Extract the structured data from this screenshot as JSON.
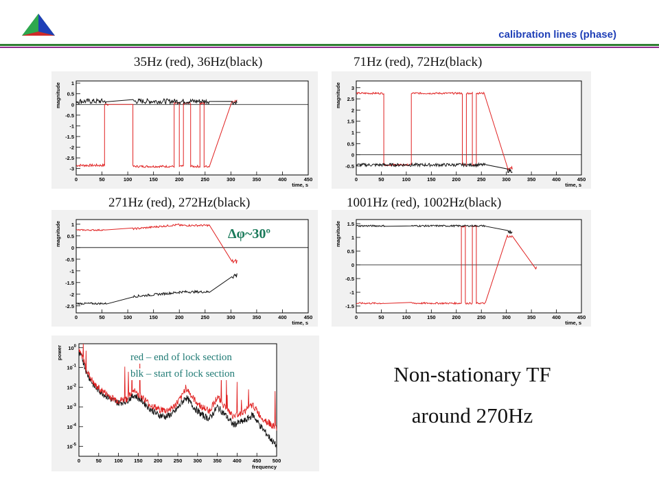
{
  "slide": {
    "title": "calibration lines (phase)",
    "colors": {
      "title": "#1f3fb7",
      "rule_top": "#2e7d32",
      "rule_bottom": "#8e2a8e",
      "annotation": "#1a7a5a"
    },
    "logo_icon": "pyramid-logo-icon",
    "main_text_line1": "Non-stationary TF",
    "main_text_line2": "around 270Hz"
  },
  "chart_data": [
    {
      "type": "line",
      "caption": "35Hz (red), 36Hz(black)",
      "xlabel": "time, s",
      "ylabel": "magnitude",
      "xlim": [
        0,
        450
      ],
      "ylim": [
        -3.3,
        1.1
      ],
      "xticks": [
        "0",
        "50",
        "100",
        "150",
        "200",
        "250",
        "300",
        "350",
        "400",
        "450"
      ],
      "yticks": [
        "1",
        "0.5",
        "0",
        "-0.5",
        "-1",
        "-1.5",
        "-2",
        "-2.5",
        "-3"
      ],
      "series": [
        {
          "color": "#e02020",
          "segments": [
            {
              "x0": 0,
              "x1": 55,
              "level": -2.85,
              "noise": 0.06
            },
            {
              "x0": 55,
              "x1": 62,
              "level": 0.0,
              "noise": 0.05
            },
            {
              "x0": 62,
              "x1": 110,
              "level": 0.0,
              "noise": 0.0
            },
            {
              "x0": 110,
              "x1": 190,
              "level": -2.9,
              "noise": 0.05
            },
            {
              "x0": 190,
              "x1": 200,
              "level": 0.05,
              "noise": 0.05
            },
            {
              "x0": 200,
              "x1": 208,
              "level": -2.9,
              "noise": 0.05
            },
            {
              "x0": 208,
              "x1": 222,
              "level": 0.05,
              "noise": 0.05
            },
            {
              "x0": 222,
              "x1": 240,
              "level": -2.9,
              "noise": 0.05
            },
            {
              "x0": 240,
              "x1": 248,
              "level": 0.05,
              "noise": 0.05
            },
            {
              "x0": 248,
              "x1": 258,
              "level": -2.9,
              "noise": 0.05
            },
            {
              "x0": 302,
              "x1": 312,
              "level": 0.15,
              "noise": 0.08
            }
          ]
        },
        {
          "color": "#111111",
          "segments": [
            {
              "x0": 0,
              "x1": 58,
              "level": 0.15,
              "noise": 0.12
            },
            {
              "x0": 110,
              "x1": 258,
              "level": 0.15,
              "noise": 0.12
            },
            {
              "x0": 302,
              "x1": 312,
              "level": 0.1,
              "noise": 0.1
            }
          ]
        }
      ]
    },
    {
      "type": "line",
      "caption": "71Hz (red), 72Hz(black)",
      "xlabel": "time, s",
      "ylabel": "magnitude",
      "xlim": [
        0,
        450
      ],
      "ylim": [
        -0.9,
        3.3
      ],
      "xticks": [
        "0",
        "50",
        "100",
        "150",
        "200",
        "250",
        "300",
        "350",
        "400",
        "450"
      ],
      "yticks": [
        "3",
        "2.5",
        "2",
        "1.5",
        "1",
        "0.5",
        "0",
        "-0.5"
      ],
      "series": [
        {
          "color": "#e02020",
          "segments": [
            {
              "x0": 0,
              "x1": 55,
              "level": 2.75,
              "noise": 0.04
            },
            {
              "x0": 55,
              "x1": 110,
              "level": -0.45,
              "noise": 0.04
            },
            {
              "x0": 110,
              "x1": 212,
              "level": 2.75,
              "noise": 0.04
            },
            {
              "x0": 212,
              "x1": 220,
              "level": -0.45,
              "noise": 0.04
            },
            {
              "x0": 220,
              "x1": 232,
              "level": 2.75,
              "noise": 0.04
            },
            {
              "x0": 232,
              "x1": 240,
              "level": -0.45,
              "noise": 0.04
            },
            {
              "x0": 240,
              "x1": 256,
              "level": 2.75,
              "noise": 0.04
            },
            {
              "x0": 302,
              "x1": 312,
              "level": -0.6,
              "noise": 0.08
            }
          ]
        },
        {
          "color": "#111111",
          "segments": [
            {
              "x0": 0,
              "x1": 110,
              "level": -0.45,
              "noise": 0.07
            },
            {
              "x0": 110,
              "x1": 258,
              "level": -0.45,
              "noise": 0.07
            },
            {
              "x0": 302,
              "x1": 312,
              "level": -0.7,
              "noise": 0.1
            }
          ]
        }
      ]
    },
    {
      "type": "line",
      "caption": "271Hz (red), 272Hz(black)",
      "xlabel": "time, s",
      "ylabel": "magnitude",
      "xlim": [
        0,
        450
      ],
      "ylim": [
        -2.8,
        1.2
      ],
      "xticks": [
        "0",
        "50",
        "100",
        "150",
        "200",
        "250",
        "300",
        "350",
        "400",
        "450"
      ],
      "yticks": [
        "1",
        "0.5",
        "0",
        "-0.5",
        "-1",
        "-1.5",
        "-2",
        "-2.5"
      ],
      "annotation": "Δφ~30º",
      "series": [
        {
          "color": "#e02020",
          "segments": [
            {
              "x0": 0,
              "x1": 55,
              "level": 0.75,
              "noise": 0.03
            },
            {
              "x0": 110,
              "x1": 200,
              "level": 0.8,
              "slope": 0.002,
              "noise": 0.04
            },
            {
              "x0": 200,
              "x1": 258,
              "level": 0.95,
              "noise": 0.04
            },
            {
              "x0": 302,
              "x1": 312,
              "level": -0.6,
              "noise": 0.1
            }
          ]
        },
        {
          "color": "#111111",
          "segments": [
            {
              "x0": 0,
              "x1": 58,
              "level": -2.4,
              "noise": 0.04
            },
            {
              "x0": 110,
              "x1": 200,
              "level": -2.1,
              "slope": 0.002,
              "noise": 0.05
            },
            {
              "x0": 200,
              "x1": 258,
              "level": -1.9,
              "noise": 0.05
            },
            {
              "x0": 302,
              "x1": 312,
              "level": -1.2,
              "noise": 0.15
            }
          ]
        }
      ]
    },
    {
      "type": "line",
      "caption": "1001Hz (red), 1002Hz(black)",
      "xlabel": "time, s",
      "ylabel": "magnitude",
      "xlim": [
        0,
        450
      ],
      "ylim": [
        -1.75,
        1.65
      ],
      "xticks": [
        "0",
        "50",
        "100",
        "150",
        "200",
        "250",
        "300",
        "350",
        "400",
        "450"
      ],
      "yticks": [
        "1.5",
        "1",
        "0.5",
        "0",
        "-0.5",
        "-1",
        "-1.5"
      ],
      "series": [
        {
          "color": "#e02020",
          "segments": [
            {
              "x0": 0,
              "x1": 55,
              "level": -1.4,
              "noise": 0.03
            },
            {
              "x0": 110,
              "x1": 210,
              "level": -1.4,
              "noise": 0.03
            },
            {
              "x0": 210,
              "x1": 218,
              "level": 1.4,
              "noise": 0.03
            },
            {
              "x0": 218,
              "x1": 232,
              "level": -1.4,
              "noise": 0.03
            },
            {
              "x0": 232,
              "x1": 240,
              "level": 1.4,
              "noise": 0.03
            },
            {
              "x0": 240,
              "x1": 258,
              "level": -1.4,
              "noise": 0.03
            },
            {
              "x0": 302,
              "x1": 312,
              "level": 1.0,
              "noise": 0.1
            },
            {
              "x0": 358,
              "x1": 360,
              "level": -0.1,
              "noise": 0.05
            }
          ]
        },
        {
          "color": "#111111",
          "segments": [
            {
              "x0": 0,
              "x1": 58,
              "level": 1.42,
              "noise": 0.03
            },
            {
              "x0": 110,
              "x1": 258,
              "level": 1.42,
              "noise": 0.03
            },
            {
              "x0": 302,
              "x1": 312,
              "level": 1.2,
              "noise": 0.1
            }
          ]
        }
      ]
    },
    {
      "type": "line",
      "xlabel": "frequency",
      "ylabel": "power",
      "log_y": true,
      "xlim": [
        0,
        500
      ],
      "ylim_exp": [
        -5.5,
        0.2
      ],
      "xticks": [
        "0",
        "50",
        "100",
        "150",
        "200",
        "250",
        "300",
        "350",
        "400",
        "450",
        "500"
      ],
      "ytick_exps": [
        0,
        -1,
        -2,
        -3,
        -4,
        -5
      ],
      "legend": [
        "red – end of lock section",
        "blk – start of lock section"
      ],
      "series": [
        {
          "color": "#e02020",
          "profile": [
            [
              0,
              -0.2
            ],
            [
              8,
              -0.4
            ],
            [
              20,
              -1.2
            ],
            [
              40,
              -1.9
            ],
            [
              60,
              -2.2
            ],
            [
              80,
              -2.5
            ],
            [
              100,
              -2.7
            ],
            [
              120,
              -2.6
            ],
            [
              140,
              -2.2
            ],
            [
              160,
              -2.5
            ],
            [
              180,
              -2.9
            ],
            [
              200,
              -3.1
            ],
            [
              220,
              -3.2
            ],
            [
              240,
              -3.0
            ],
            [
              260,
              -2.5
            ],
            [
              270,
              -2.0
            ],
            [
              290,
              -2.6
            ],
            [
              310,
              -3.0
            ],
            [
              330,
              -3.2
            ],
            [
              350,
              -2.5
            ],
            [
              370,
              -3.0
            ],
            [
              390,
              -3.5
            ],
            [
              420,
              -3.2
            ],
            [
              440,
              -2.9
            ],
            [
              460,
              -3.5
            ],
            [
              480,
              -3.8
            ],
            [
              500,
              -4.1
            ]
          ]
        },
        {
          "color": "#111111",
          "profile": [
            [
              0,
              -0.3
            ],
            [
              8,
              -0.5
            ],
            [
              20,
              -1.3
            ],
            [
              40,
              -2.0
            ],
            [
              60,
              -2.3
            ],
            [
              80,
              -2.6
            ],
            [
              100,
              -2.8
            ],
            [
              120,
              -2.7
            ],
            [
              140,
              -2.4
            ],
            [
              160,
              -2.7
            ],
            [
              180,
              -3.1
            ],
            [
              200,
              -3.4
            ],
            [
              220,
              -3.5
            ],
            [
              240,
              -3.3
            ],
            [
              260,
              -2.8
            ],
            [
              270,
              -2.5
            ],
            [
              290,
              -3.0
            ],
            [
              310,
              -3.4
            ],
            [
              330,
              -3.6
            ],
            [
              350,
              -3.0
            ],
            [
              370,
              -3.4
            ],
            [
              390,
              -3.9
            ],
            [
              420,
              -3.7
            ],
            [
              440,
              -3.4
            ],
            [
              460,
              -4.0
            ],
            [
              480,
              -4.5
            ],
            [
              500,
              -5.0
            ]
          ]
        }
      ]
    }
  ]
}
